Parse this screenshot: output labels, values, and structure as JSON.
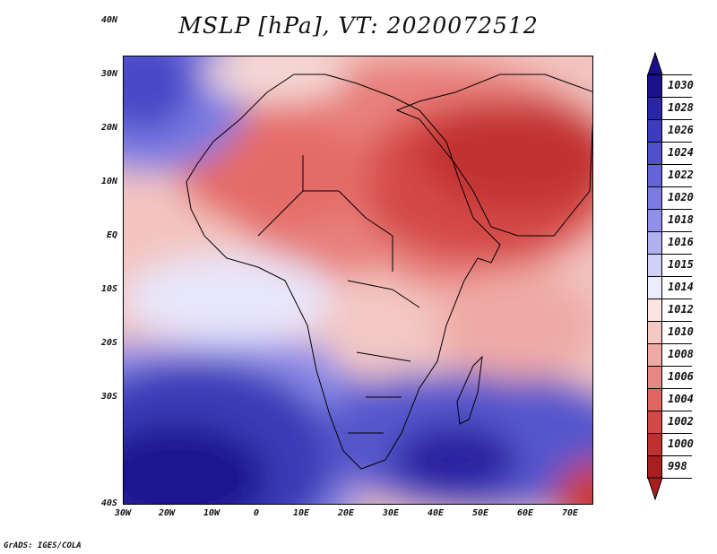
{
  "title": "MSLP [hPa], VT: 2020072512",
  "credit": "GrADS: IGES/COLA",
  "lat_labels": [
    "40N",
    "30N",
    "20N",
    "10N",
    "EQ",
    "10S",
    "20S",
    "30S",
    "40S"
  ],
  "lon_labels": [
    "30W",
    "20W",
    "10W",
    "0",
    "10E",
    "20E",
    "30E",
    "40E",
    "50E",
    "60E",
    "70E"
  ],
  "colorbar": {
    "labels": [
      "1030",
      "1028",
      "1026",
      "1024",
      "1022",
      "1020",
      "1018",
      "1016",
      "1015",
      "1014",
      "1012",
      "1010",
      "1008",
      "1006",
      "1004",
      "1002",
      "1000",
      "998"
    ],
    "colors": [
      "#1a118c",
      "#2b25a8",
      "#3c3cc0",
      "#5050cc",
      "#6464d8",
      "#7a7ae2",
      "#9090ea",
      "#aeb0f0",
      "#ced0f6",
      "#ececfb",
      "#fbe4e2",
      "#f6c8c4",
      "#efaaa6",
      "#e78683",
      "#df6660",
      "#d24844",
      "#c0302e",
      "#a91e1e"
    ]
  },
  "colors": {
    "land_border": "#000000",
    "background": "#ffffff"
  }
}
